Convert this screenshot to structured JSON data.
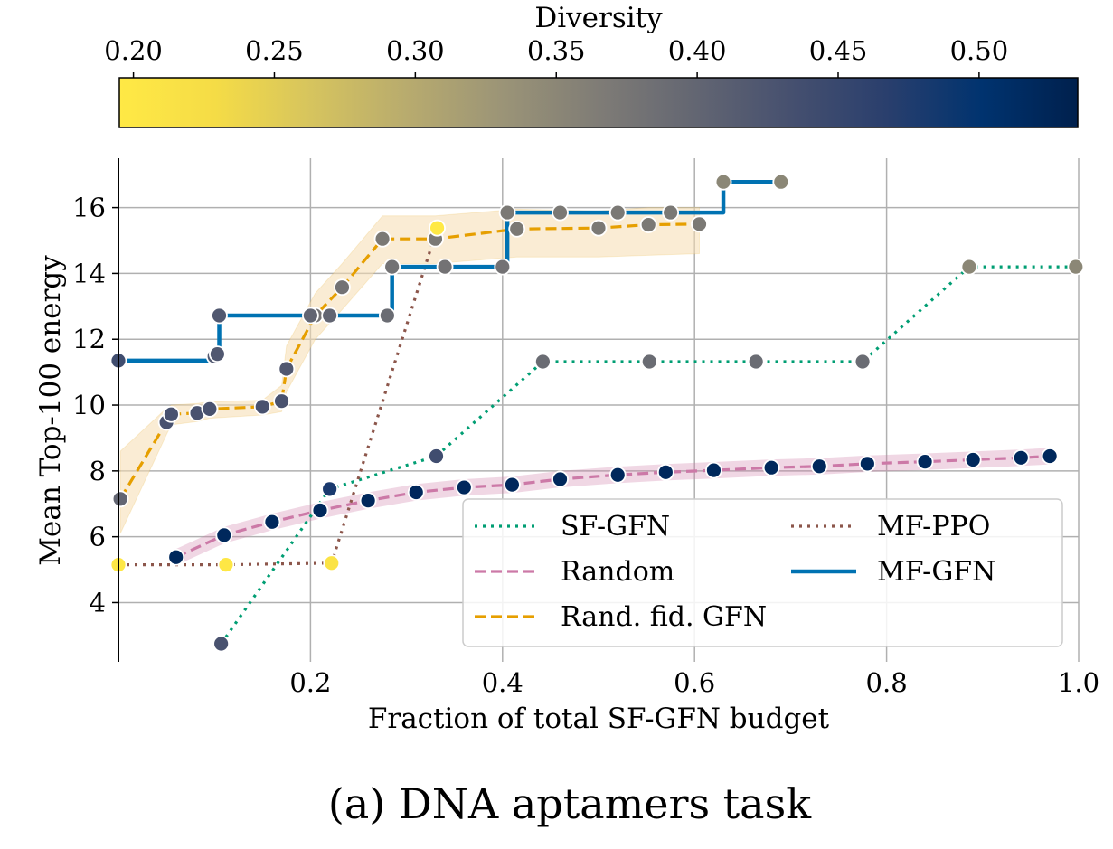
{
  "chart_data": {
    "type": "line",
    "caption": "(a) DNA aptamers task",
    "xlabel": "Fraction of total SF-GFN budget",
    "ylabel": "Mean Top-100 energy",
    "xlim": [
      0,
      1.0
    ],
    "ylim": [
      2.2,
      17.5
    ],
    "xticks": [
      "0.2",
      "0.4",
      "0.6",
      "0.8",
      "1.0"
    ],
    "yticks": [
      "4",
      "6",
      "8",
      "10",
      "12",
      "14",
      "16"
    ],
    "grid": true,
    "legend_position": "lower-right",
    "colorbar": {
      "label": "Diversity",
      "range": [
        0.195,
        0.535
      ],
      "ticks": [
        "0.20",
        "0.25",
        "0.30",
        "0.35",
        "0.40",
        "0.45",
        "0.50"
      ],
      "colormap": "cividis",
      "colors": [
        "#00204d",
        "#00336f",
        "#2a3f6d",
        "#46506f",
        "#636672",
        "#7f7c76",
        "#9b9477",
        "#b8ab6e",
        "#d6c45e",
        "#f5dc46",
        "#ffe945"
      ]
    },
    "series": [
      {
        "name": "SF-GFN",
        "color": "#009e73",
        "style": "dotted",
        "points": [
          {
            "x": 0.107,
            "y": 2.75,
            "d": 0.43
          },
          {
            "x": 0.22,
            "y": 7.45,
            "d": 0.48
          },
          {
            "x": 0.331,
            "y": 8.45,
            "d": 0.44
          },
          {
            "x": 0.442,
            "y": 11.32,
            "d": 0.39
          },
          {
            "x": 0.553,
            "y": 11.32,
            "d": 0.39
          },
          {
            "x": 0.664,
            "y": 11.32,
            "d": 0.39
          },
          {
            "x": 0.775,
            "y": 11.32,
            "d": 0.39
          },
          {
            "x": 0.886,
            "y": 14.2,
            "d": 0.35
          },
          {
            "x": 0.997,
            "y": 14.2,
            "d": 0.35
          }
        ]
      },
      {
        "name": "Random",
        "color": "#cc79a7",
        "style": "dashed",
        "band": 0.25,
        "points": [
          {
            "x": 0.06,
            "y": 5.38,
            "d": 0.52
          },
          {
            "x": 0.11,
            "y": 6.05,
            "d": 0.52
          },
          {
            "x": 0.16,
            "y": 6.45,
            "d": 0.52
          },
          {
            "x": 0.21,
            "y": 6.8,
            "d": 0.52
          },
          {
            "x": 0.26,
            "y": 7.1,
            "d": 0.52
          },
          {
            "x": 0.31,
            "y": 7.35,
            "d": 0.52
          },
          {
            "x": 0.36,
            "y": 7.5,
            "d": 0.52
          },
          {
            "x": 0.41,
            "y": 7.58,
            "d": 0.52
          },
          {
            "x": 0.46,
            "y": 7.75,
            "d": 0.52
          },
          {
            "x": 0.52,
            "y": 7.88,
            "d": 0.52
          },
          {
            "x": 0.57,
            "y": 7.96,
            "d": 0.52
          },
          {
            "x": 0.62,
            "y": 8.02,
            "d": 0.52
          },
          {
            "x": 0.68,
            "y": 8.1,
            "d": 0.52
          },
          {
            "x": 0.73,
            "y": 8.14,
            "d": 0.52
          },
          {
            "x": 0.78,
            "y": 8.22,
            "d": 0.52
          },
          {
            "x": 0.84,
            "y": 8.28,
            "d": 0.52
          },
          {
            "x": 0.89,
            "y": 8.34,
            "d": 0.52
          },
          {
            "x": 0.94,
            "y": 8.4,
            "d": 0.52
          },
          {
            "x": 0.97,
            "y": 8.45,
            "d": 0.52
          }
        ]
      },
      {
        "name": "Rand. fid. GFN",
        "color": "#e69f00",
        "style": "dashed",
        "band_color": "#f5dcb0",
        "points": [
          {
            "x": 0.002,
            "y": 7.15,
            "d": 0.4,
            "lo": 6.1,
            "hi": 8.6
          },
          {
            "x": 0.05,
            "y": 9.48,
            "d": 0.43,
            "lo": 9.1,
            "hi": 9.9
          },
          {
            "x": 0.055,
            "y": 9.72,
            "d": 0.43,
            "lo": 9.4,
            "hi": 10.0
          },
          {
            "x": 0.082,
            "y": 9.76,
            "d": 0.43,
            "lo": 9.5,
            "hi": 10.05
          },
          {
            "x": 0.095,
            "y": 9.88,
            "d": 0.43,
            "lo": 9.6,
            "hi": 10.1
          },
          {
            "x": 0.15,
            "y": 9.95,
            "d": 0.43,
            "lo": 9.7,
            "hi": 10.15
          },
          {
            "x": 0.17,
            "y": 10.12,
            "d": 0.43,
            "lo": 9.8,
            "hi": 10.6
          },
          {
            "x": 0.175,
            "y": 11.1,
            "d": 0.42,
            "lo": 10.4,
            "hi": 11.8
          },
          {
            "x": 0.205,
            "y": 12.72,
            "d": 0.38,
            "lo": 12.0,
            "hi": 13.4
          },
          {
            "x": 0.233,
            "y": 13.58,
            "d": 0.38,
            "lo": 12.9,
            "hi": 14.3
          },
          {
            "x": 0.275,
            "y": 15.05,
            "d": 0.37,
            "lo": 14.3,
            "hi": 15.75
          },
          {
            "x": 0.33,
            "y": 15.05,
            "d": 0.37,
            "lo": 14.3,
            "hi": 15.75
          },
          {
            "x": 0.415,
            "y": 15.35,
            "d": 0.37,
            "lo": 14.5,
            "hi": 15.95
          },
          {
            "x": 0.5,
            "y": 15.38,
            "d": 0.37,
            "lo": 14.5,
            "hi": 15.9
          },
          {
            "x": 0.552,
            "y": 15.48,
            "d": 0.37,
            "lo": 14.55,
            "hi": 16.0
          },
          {
            "x": 0.605,
            "y": 15.5,
            "d": 0.37,
            "lo": 14.6,
            "hi": 16.0
          }
        ]
      },
      {
        "name": "MF-PPO",
        "color": "#8c564b",
        "style": "dotted",
        "points": [
          {
            "x": 0.0,
            "y": 5.15,
            "d": 0.2
          },
          {
            "x": 0.112,
            "y": 5.15,
            "d": 0.2
          },
          {
            "x": 0.222,
            "y": 5.2,
            "d": 0.21
          },
          {
            "x": 0.332,
            "y": 15.38,
            "d": 0.195
          }
        ]
      },
      {
        "name": "MF-GFN",
        "color": "#0072b2",
        "style": "solid",
        "step": true,
        "points": [
          {
            "x": 0.0,
            "y": 11.35,
            "d": 0.44
          },
          {
            "x": 0.1,
            "y": 11.48,
            "d": 0.42
          },
          {
            "x": 0.103,
            "y": 11.55,
            "d": 0.42
          },
          {
            "x": 0.105,
            "y": 12.72,
            "d": 0.42
          },
          {
            "x": 0.2,
            "y": 12.72,
            "d": 0.4
          },
          {
            "x": 0.22,
            "y": 12.72,
            "d": 0.4
          },
          {
            "x": 0.28,
            "y": 12.72,
            "d": 0.39
          },
          {
            "x": 0.285,
            "y": 14.2,
            "d": 0.38
          },
          {
            "x": 0.34,
            "y": 14.2,
            "d": 0.38
          },
          {
            "x": 0.4,
            "y": 14.2,
            "d": 0.38
          },
          {
            "x": 0.405,
            "y": 15.85,
            "d": 0.37
          },
          {
            "x": 0.46,
            "y": 15.85,
            "d": 0.37
          },
          {
            "x": 0.52,
            "y": 15.85,
            "d": 0.37
          },
          {
            "x": 0.575,
            "y": 15.85,
            "d": 0.37
          },
          {
            "x": 0.63,
            "y": 16.78,
            "d": 0.35
          },
          {
            "x": 0.69,
            "y": 16.78,
            "d": 0.35
          }
        ]
      }
    ]
  }
}
